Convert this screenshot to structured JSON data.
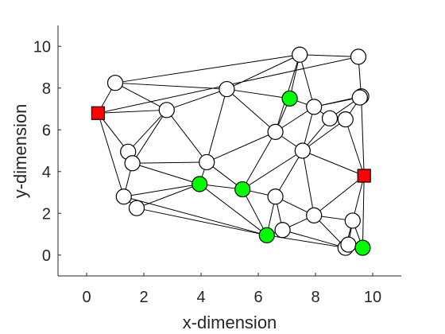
{
  "chart_data": {
    "type": "scatter",
    "title": "",
    "xlabel": "x-dimension",
    "ylabel": "y-dimension",
    "xlim": [
      -1,
      11
    ],
    "ylim": [
      -1,
      11
    ],
    "xticks": [
      "0",
      "2",
      "4",
      "6",
      "8",
      "10"
    ],
    "yticks": [
      "0",
      "2",
      "4",
      "6",
      "8",
      "10"
    ],
    "xtick_values": [
      0,
      2,
      4,
      6,
      8,
      10
    ],
    "ytick_values": [
      0,
      2,
      4,
      6,
      8,
      10
    ],
    "grid": false,
    "colors": {
      "unknown": "#ffffff",
      "anchor": "#ff0000",
      "estimated": "#00ff00",
      "edge": "#000000"
    },
    "nodes": [
      {
        "x": 0.4,
        "y": 6.8,
        "kind": "anchor"
      },
      {
        "x": 9.7,
        "y": 3.8,
        "kind": "anchor"
      },
      {
        "x": 7.1,
        "y": 7.5,
        "kind": "estimated"
      },
      {
        "x": 3.95,
        "y": 3.4,
        "kind": "estimated"
      },
      {
        "x": 5.45,
        "y": 3.15,
        "kind": "estimated"
      },
      {
        "x": 6.3,
        "y": 0.95,
        "kind": "estimated"
      },
      {
        "x": 9.65,
        "y": 0.35,
        "kind": "estimated"
      },
      {
        "x": 1.0,
        "y": 8.25,
        "kind": "unknown"
      },
      {
        "x": 2.8,
        "y": 6.95,
        "kind": "unknown"
      },
      {
        "x": 4.9,
        "y": 7.95,
        "kind": "unknown"
      },
      {
        "x": 7.45,
        "y": 9.6,
        "kind": "unknown"
      },
      {
        "x": 9.5,
        "y": 9.5,
        "kind": "unknown"
      },
      {
        "x": 7.95,
        "y": 7.1,
        "kind": "unknown"
      },
      {
        "x": 9.6,
        "y": 7.6,
        "kind": "unknown"
      },
      {
        "x": 9.55,
        "y": 7.55,
        "kind": "unknown"
      },
      {
        "x": 8.5,
        "y": 6.55,
        "kind": "unknown"
      },
      {
        "x": 9.05,
        "y": 6.5,
        "kind": "unknown"
      },
      {
        "x": 6.6,
        "y": 5.9,
        "kind": "unknown"
      },
      {
        "x": 7.55,
        "y": 5.0,
        "kind": "unknown"
      },
      {
        "x": 1.45,
        "y": 4.95,
        "kind": "unknown"
      },
      {
        "x": 1.6,
        "y": 4.4,
        "kind": "unknown"
      },
      {
        "x": 4.2,
        "y": 4.45,
        "kind": "unknown"
      },
      {
        "x": 1.3,
        "y": 2.8,
        "kind": "unknown"
      },
      {
        "x": 1.75,
        "y": 2.25,
        "kind": "unknown"
      },
      {
        "x": 6.6,
        "y": 2.8,
        "kind": "unknown"
      },
      {
        "x": 7.95,
        "y": 1.9,
        "kind": "unknown"
      },
      {
        "x": 6.85,
        "y": 1.2,
        "kind": "unknown"
      },
      {
        "x": 9.3,
        "y": 1.65,
        "kind": "unknown"
      },
      {
        "x": 9.05,
        "y": 0.35,
        "kind": "unknown"
      },
      {
        "x": 9.15,
        "y": 0.5,
        "kind": "unknown"
      }
    ],
    "edges": [
      [
        0,
        7
      ],
      [
        0,
        8
      ],
      [
        0,
        19
      ],
      [
        0,
        22
      ],
      [
        7,
        8
      ],
      [
        7,
        9
      ],
      [
        7,
        10
      ],
      [
        9,
        8
      ],
      [
        9,
        10
      ],
      [
        9,
        2
      ],
      [
        9,
        17
      ],
      [
        9,
        21
      ],
      [
        8,
        19
      ],
      [
        8,
        20
      ],
      [
        8,
        21
      ],
      [
        10,
        11
      ],
      [
        10,
        2
      ],
      [
        10,
        12
      ],
      [
        10,
        17
      ],
      [
        11,
        13
      ],
      [
        2,
        12
      ],
      [
        2,
        17
      ],
      [
        12,
        13
      ],
      [
        12,
        15
      ],
      [
        12,
        17
      ],
      [
        12,
        18
      ],
      [
        13,
        15
      ],
      [
        13,
        16
      ],
      [
        13,
        1
      ],
      [
        14,
        12
      ],
      [
        15,
        16
      ],
      [
        16,
        18
      ],
      [
        16,
        1
      ],
      [
        15,
        18
      ],
      [
        17,
        18
      ],
      [
        17,
        21
      ],
      [
        17,
        4
      ],
      [
        18,
        4
      ],
      [
        18,
        1
      ],
      [
        18,
        25
      ],
      [
        18,
        24
      ],
      [
        19,
        20
      ],
      [
        20,
        22
      ],
      [
        20,
        21
      ],
      [
        20,
        3
      ],
      [
        21,
        3
      ],
      [
        21,
        4
      ],
      [
        22,
        23
      ],
      [
        22,
        3
      ],
      [
        22,
        5
      ],
      [
        23,
        3
      ],
      [
        23,
        5
      ],
      [
        3,
        4
      ],
      [
        3,
        5
      ],
      [
        4,
        24
      ],
      [
        4,
        5
      ],
      [
        24,
        25
      ],
      [
        24,
        26
      ],
      [
        24,
        5
      ],
      [
        25,
        1
      ],
      [
        25,
        26
      ],
      [
        25,
        27
      ],
      [
        25,
        28
      ],
      [
        26,
        5
      ],
      [
        26,
        28
      ],
      [
        5,
        28
      ],
      [
        27,
        1
      ],
      [
        27,
        6
      ],
      [
        27,
        28
      ],
      [
        27,
        29
      ],
      [
        28,
        6
      ],
      [
        29,
        6
      ],
      [
        1,
        6
      ],
      [
        0,
        11
      ]
    ]
  }
}
